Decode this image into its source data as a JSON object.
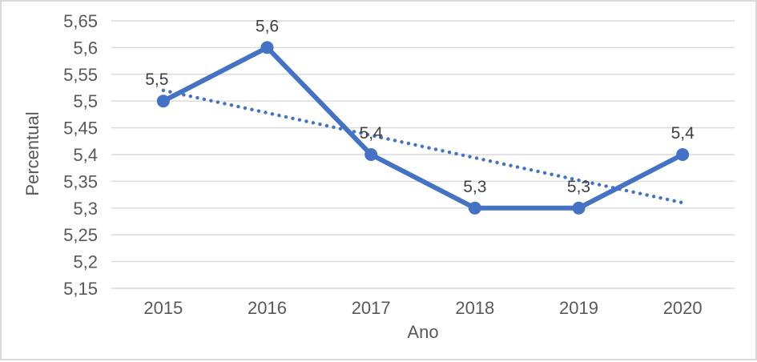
{
  "chart_data": {
    "type": "line",
    "title": "",
    "xlabel": "Ano",
    "ylabel": "Percentual",
    "categories": [
      "2015",
      "2016",
      "2017",
      "2018",
      "2019",
      "2020"
    ],
    "series": [
      {
        "name": "Percentual",
        "values": [
          5.5,
          5.6,
          5.4,
          5.3,
          5.3,
          5.4
        ],
        "data_labels": [
          "5,5",
          "5,6",
          "5,4",
          "5,3",
          "5,3",
          "5,4"
        ]
      }
    ],
    "trendline": {
      "type": "linear",
      "dash": "dotted",
      "start_value": 5.52,
      "end_value": 5.31
    },
    "ylim": [
      5.15,
      5.65
    ],
    "ytick_step": 0.05,
    "ytick_labels": [
      "5,65",
      "5,6",
      "5,55",
      "5,5",
      "5,45",
      "5,4",
      "5,35",
      "5,3",
      "5,25",
      "5,2",
      "5,15"
    ],
    "grid": true,
    "legend": "none",
    "colors": {
      "series_line": "#4472C4",
      "marker": "#4472C4",
      "trendline": "#4472C4",
      "gridline": "#d9d9d9",
      "tick_text": "#595959",
      "axis_title_text": "#595959",
      "data_label_text": "#404040",
      "frame_border": "#d9d9d9",
      "background": "#ffffff"
    }
  }
}
